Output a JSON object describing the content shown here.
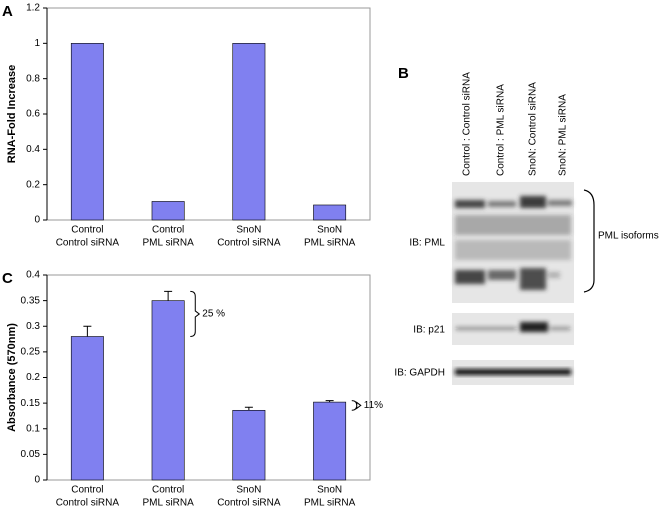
{
  "chart_data": [
    {
      "type": "bar",
      "panel": "A",
      "y_label": "RNA-Fold Increase",
      "categories": [
        [
          "Control",
          "Control siRNA"
        ],
        [
          "Control",
          "PML siRNA"
        ],
        [
          "SnoN",
          "Control siRNA"
        ],
        [
          "SnoN",
          "PML siRNA"
        ]
      ],
      "values": [
        1,
        0.105,
        1,
        0.085
      ],
      "color": "#8080f0",
      "ylim": [
        0,
        1.2
      ],
      "yticks": [
        0,
        0.2,
        0.4,
        0.6,
        0.8,
        1,
        1.2
      ]
    },
    {
      "type": "bar",
      "panel": "C",
      "y_label": "Absorbance (570nm)",
      "categories": [
        [
          "Control",
          "Control siRNA"
        ],
        [
          "Control",
          "PML siRNA"
        ],
        [
          "SnoN",
          "Control siRNA"
        ],
        [
          "SnoN",
          "PML siRNA"
        ]
      ],
      "values": [
        0.28,
        0.35,
        0.136,
        0.152
      ],
      "errors": [
        0.02,
        0.018,
        0.006,
        0.003
      ],
      "color": "#8080f0",
      "ylim": [
        0,
        0.4
      ],
      "yticks": [
        0,
        0.05,
        0.1,
        0.15,
        0.2,
        0.25,
        0.3,
        0.35,
        0.4
      ],
      "annotations": [
        "25 %",
        "11%"
      ]
    }
  ],
  "blot": {
    "panel": "B",
    "lanes": [
      "Control : Control siRNA",
      "Control : PML siRNA",
      "SnoN: Control siRNA",
      "SnoN: PML siRNA"
    ],
    "rows": [
      "IB: PML",
      "IB: p21",
      "IB: GAPDH"
    ],
    "bracket_label": "PML isoforms"
  }
}
